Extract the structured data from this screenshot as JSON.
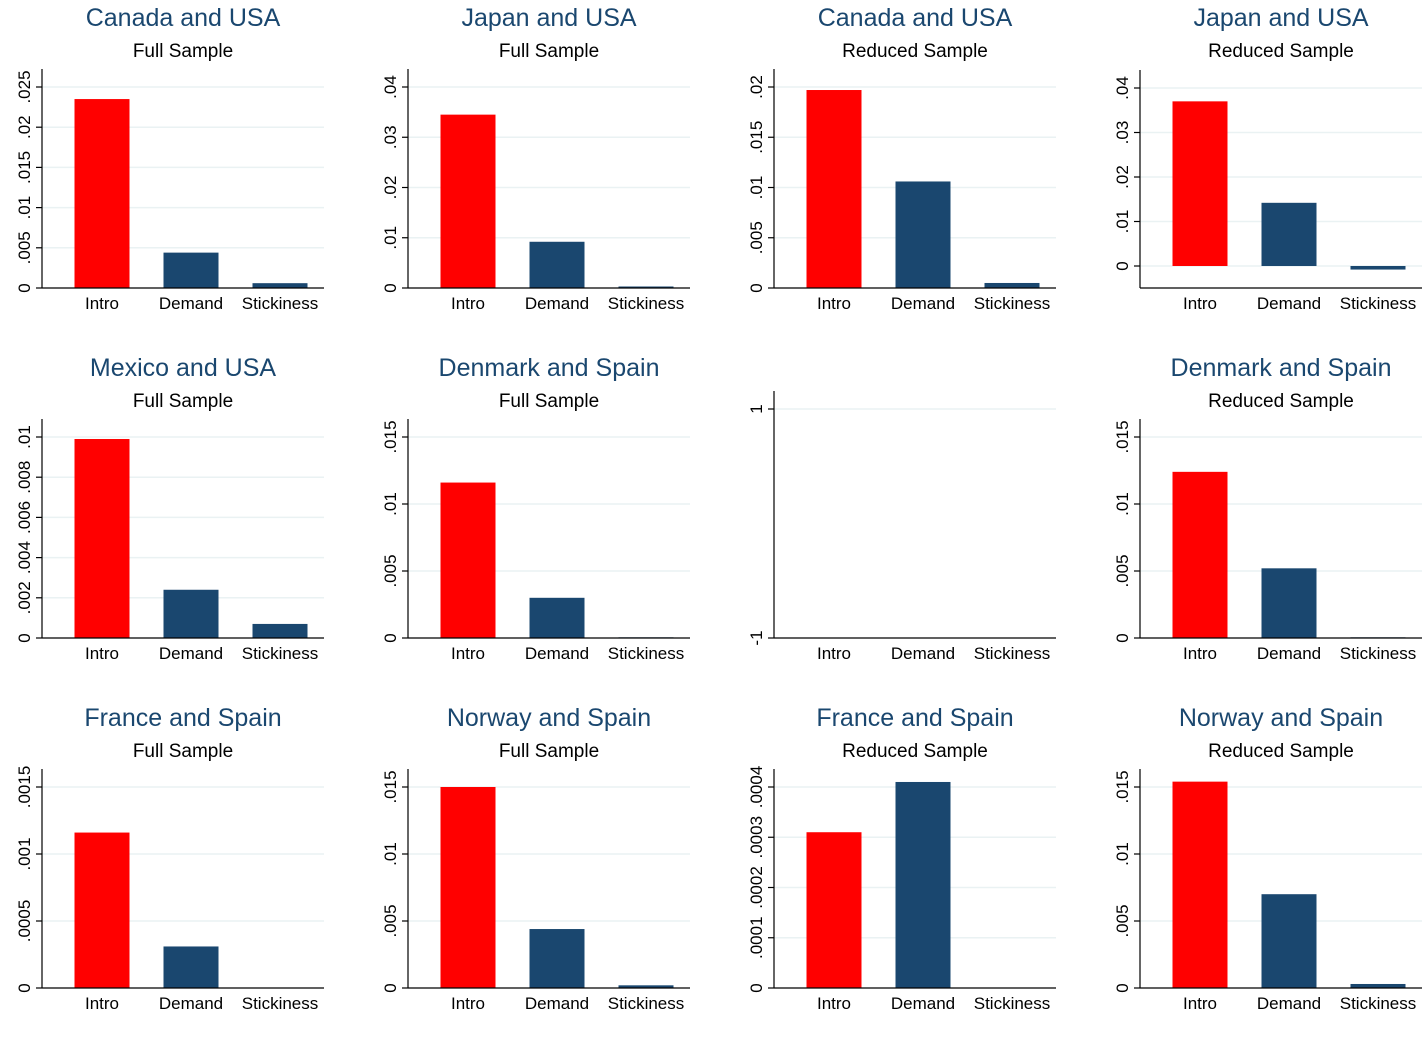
{
  "colors": {
    "intro": "#ff0000",
    "other": "#1a476f",
    "grid": "#eaf2f3",
    "axis": "#000000"
  },
  "chart_data": [
    {
      "type": "bar",
      "title": "Canada and USA",
      "subtitle": "Full Sample",
      "categories": [
        "Intro",
        "Demand",
        "Stickiness"
      ],
      "values": [
        0.0235,
        0.0044,
        0.0006
      ],
      "ylim": [
        0,
        0.025
      ],
      "yticks": [
        0,
        0.005,
        0.01,
        0.015,
        0.02,
        0.025
      ],
      "yticklabels": [
        "0",
        ".005",
        ".01",
        ".015",
        ".02",
        ".025"
      ]
    },
    {
      "type": "bar",
      "title": "Japan and USA",
      "subtitle": "Full Sample",
      "categories": [
        "Intro",
        "Demand",
        "Stickiness"
      ],
      "values": [
        0.0345,
        0.0092,
        0.0003
      ],
      "ylim": [
        0,
        0.04
      ],
      "yticks": [
        0,
        0.01,
        0.02,
        0.03,
        0.04
      ],
      "yticklabels": [
        "0",
        ".01",
        ".02",
        ".03",
        ".04"
      ]
    },
    {
      "type": "bar",
      "title": "Canada and USA",
      "subtitle": "Reduced Sample",
      "categories": [
        "Intro",
        "Demand",
        "Stickiness"
      ],
      "values": [
        0.0197,
        0.0106,
        0.0005
      ],
      "ylim": [
        0,
        0.02
      ],
      "yticks": [
        0,
        0.005,
        0.01,
        0.015,
        0.02
      ],
      "yticklabels": [
        "0",
        ".005",
        ".01",
        ".015",
        ".02"
      ]
    },
    {
      "type": "bar",
      "title": "Japan and USA",
      "subtitle": "Reduced Sample",
      "categories": [
        "Intro",
        "Demand",
        "Stickiness"
      ],
      "values": [
        0.037,
        0.0142,
        -0.0008
      ],
      "ylim": [
        0,
        0.04
      ],
      "yticks": [
        0,
        0.01,
        0.02,
        0.03,
        0.04
      ],
      "yticklabels": [
        "0",
        ".01",
        ".02",
        ".03",
        ".04"
      ]
    },
    {
      "type": "bar",
      "title": "Mexico and USA",
      "subtitle": "Full Sample",
      "categories": [
        "Intro",
        "Demand",
        "Stickiness"
      ],
      "values": [
        0.0099,
        0.0024,
        0.0007
      ],
      "ylim": [
        0,
        0.01
      ],
      "yticks": [
        0,
        0.002,
        0.004,
        0.006,
        0.008,
        0.01
      ],
      "yticklabels": [
        "0",
        ".002",
        ".004",
        ".006",
        ".008",
        ".01"
      ]
    },
    {
      "type": "bar",
      "title": "Denmark and Spain",
      "subtitle": "Full Sample",
      "categories": [
        "Intro",
        "Demand",
        "Stickiness"
      ],
      "values": [
        0.0116,
        0.003,
        5e-05
      ],
      "ylim": [
        0,
        0.015
      ],
      "yticks": [
        0,
        0.005,
        0.01,
        0.015
      ],
      "yticklabels": [
        "0",
        ".005",
        ".01",
        ".015"
      ]
    },
    {
      "type": "bar",
      "title": "",
      "subtitle": "",
      "categories": [
        "Intro",
        "Demand",
        "Stickiness"
      ],
      "values": [
        0,
        0,
        0
      ],
      "ylim": [
        -1,
        1
      ],
      "yticks": [
        -1,
        1
      ],
      "yticklabels": [
        "-1",
        "1"
      ]
    },
    {
      "type": "bar",
      "title": "Denmark and Spain",
      "subtitle": "Reduced Sample",
      "categories": [
        "Intro",
        "Demand",
        "Stickiness"
      ],
      "values": [
        0.0124,
        0.0052,
        5e-05
      ],
      "ylim": [
        0,
        0.015
      ],
      "yticks": [
        0,
        0.005,
        0.01,
        0.015
      ],
      "yticklabels": [
        "0",
        ".005",
        ".01",
        ".015"
      ]
    },
    {
      "type": "bar",
      "title": "France and Spain",
      "subtitle": "Full Sample",
      "categories": [
        "Intro",
        "Demand",
        "Stickiness"
      ],
      "values": [
        0.00116,
        0.00031,
        0
      ],
      "ylim": [
        0,
        0.0015
      ],
      "yticks": [
        0,
        0.0005,
        0.001,
        0.0015
      ],
      "yticklabels": [
        "0",
        ".0005",
        ".001",
        ".0015"
      ]
    },
    {
      "type": "bar",
      "title": "Norway and Spain",
      "subtitle": "Full Sample",
      "categories": [
        "Intro",
        "Demand",
        "Stickiness"
      ],
      "values": [
        0.015,
        0.0044,
        0.0002
      ],
      "ylim": [
        0,
        0.015
      ],
      "yticks": [
        0,
        0.005,
        0.01,
        0.015
      ],
      "yticklabels": [
        "0",
        ".005",
        ".01",
        ".015"
      ]
    },
    {
      "type": "bar",
      "title": "France and Spain",
      "subtitle": "Reduced Sample",
      "categories": [
        "Intro",
        "Demand",
        "Stickiness"
      ],
      "values": [
        0.00031,
        0.00041,
        0
      ],
      "ylim": [
        0,
        0.0004
      ],
      "yticks": [
        0,
        0.0001,
        0.0002,
        0.0003,
        0.0004
      ],
      "yticklabels": [
        "0",
        ".0001",
        ".0002",
        ".0003",
        ".0004"
      ]
    },
    {
      "type": "bar",
      "title": "Norway and Spain",
      "subtitle": "Reduced Sample",
      "categories": [
        "Intro",
        "Demand",
        "Stickiness"
      ],
      "values": [
        0.0154,
        0.007,
        0.0003
      ],
      "ylim": [
        0,
        0.015
      ],
      "yticks": [
        0,
        0.005,
        0.01,
        0.015
      ],
      "yticklabels": [
        "0",
        ".005",
        ".01",
        ".015"
      ]
    }
  ]
}
